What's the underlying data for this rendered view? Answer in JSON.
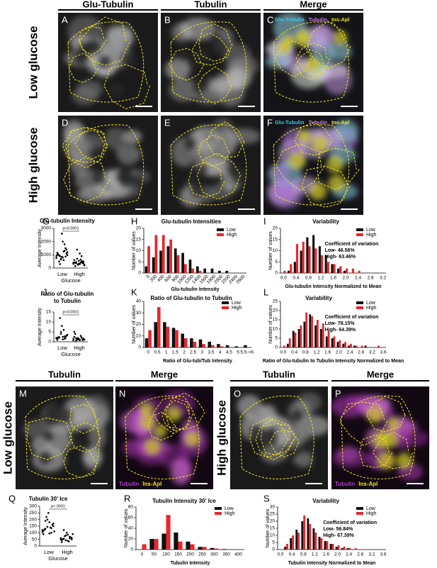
{
  "figure": {
    "headers_top": [
      "Glu-Tubulin",
      "Tubulin",
      "Merge"
    ],
    "row_labels": [
      "Low glucose",
      "High glucose"
    ],
    "panels": [
      "A",
      "B",
      "C",
      "D",
      "E",
      "F"
    ],
    "merge_legend": [
      {
        "text": "Glu-Tubulin",
        "color": "#3ec8e8"
      },
      {
        "text": "Tubulin",
        "color": "#c07ae0"
      },
      {
        "text": "Ins-Apl",
        "color": "#f2e21a"
      }
    ],
    "bottom_headers": [
      "Tubulin",
      "Merge",
      "Tubulin",
      "Merge"
    ],
    "bottom_row_labels": [
      "Low glucose",
      "High glucose"
    ],
    "bottom_panels": [
      "M",
      "N",
      "O",
      "P"
    ],
    "bottom_legend": [
      {
        "text": "Tubulin",
        "color": "#b23ad0"
      },
      {
        "text": "Ins-Apl",
        "color": "#f2e21a"
      }
    ]
  },
  "chart_data": [
    {
      "type": "dot",
      "letter": "G",
      "title": "Glu-tubulin Intensity",
      "ylabel": "Average Intensity",
      "xlabel": "Glucose",
      "categories": [
        "Low",
        "High"
      ],
      "values": [
        [
          900,
          1100,
          1300,
          800,
          700,
          950,
          1000,
          1200,
          1500,
          600,
          850,
          900,
          1050,
          750,
          1400,
          1800,
          2000,
          650,
          500,
          1150,
          980,
          870,
          1250,
          2600,
          300
        ],
        [
          400,
          350,
          500,
          300,
          250,
          450,
          600,
          200,
          380,
          420,
          550,
          700,
          150,
          320,
          480,
          900,
          1100,
          280,
          360,
          410,
          230,
          520,
          640,
          330,
          1400
        ]
      ],
      "ylim": [
        0,
        3000
      ],
      "yticks": [
        0,
        1000,
        2000,
        3000
      ],
      "annotation": "p<0.0001"
    },
    {
      "type": "bar",
      "letter": "H",
      "title": "Glu-tubulin Intensities",
      "ylabel": "Number of values",
      "xlabel": "Glu-tubulin Intensity",
      "categories": [
        "0",
        "200",
        "400",
        "600",
        "800",
        "1000",
        "1200",
        "1400",
        "1600",
        "1800",
        "2000",
        "2200",
        "2400",
        "2600"
      ],
      "series": [
        {
          "name": "Low",
          "color": "#111111",
          "values": [
            3,
            7,
            10,
            12,
            11,
            9,
            6,
            3,
            2,
            2,
            1,
            1,
            0,
            0
          ]
        },
        {
          "name": "High",
          "color": "#e8262b",
          "values": [
            12,
            17,
            17,
            15,
            8,
            4,
            2,
            1,
            0,
            0,
            0,
            0,
            0,
            0
          ]
        }
      ],
      "ylim": [
        0,
        20
      ],
      "yticks": [
        0,
        5,
        10,
        15,
        20
      ]
    },
    {
      "type": "bar",
      "letter": "I",
      "title": "Variability",
      "ylabel": "Number of values",
      "xlabel": "Glu-tubulin Intensity Normalized to Mean",
      "categories": [
        "0.0",
        null,
        "0.4",
        null,
        "0.8",
        null,
        "1.2",
        null,
        "1.6",
        null,
        "2.0",
        null,
        "2.4",
        null,
        "2.8",
        null,
        "3.2"
      ],
      "series": [
        {
          "name": "Low",
          "color": "#111111",
          "values": [
            0,
            1,
            5,
            10,
            16,
            17,
            12,
            8,
            4,
            2,
            1,
            0,
            0,
            0,
            0,
            0,
            0
          ]
        },
        {
          "name": "High",
          "color": "#e8262b",
          "values": [
            1,
            4,
            13,
            14,
            12,
            11,
            8,
            5,
            4,
            3,
            2,
            2,
            1,
            0,
            0,
            0,
            0
          ]
        }
      ],
      "ylim": [
        0,
        20
      ],
      "yticks": [
        0,
        5,
        10,
        15,
        20
      ],
      "notes": [
        "Coefficient of variation",
        "Low- 46.56%",
        "High- 63.46%"
      ]
    },
    {
      "type": "dot",
      "letter": "J",
      "title": [
        "Ratio of Glu-tubulin",
        "to Tubulin"
      ],
      "ylabel": "Average Intensity",
      "xlabel": "Glucose",
      "categories": [
        "Low",
        "High"
      ],
      "values": [
        [
          2,
          3,
          1.5,
          2.5,
          4,
          2,
          1,
          3.5,
          2,
          6,
          8,
          12,
          2.2,
          1.8,
          3,
          2.7,
          1.2,
          5,
          2.4,
          1.6
        ],
        [
          1.5,
          1,
          2,
          0.8,
          1.2,
          1.8,
          2.5,
          1.1,
          0.9,
          3,
          1.4,
          1.3,
          4,
          0.7,
          1.6,
          2.2,
          1,
          1.9,
          0.6,
          5
        ]
      ],
      "ylim": [
        0,
        15
      ],
      "yticks": [
        0,
        5,
        10,
        15
      ],
      "annotation": "p<0.0001"
    },
    {
      "type": "bar",
      "letter": "K",
      "title": "Ratio of Glu-tubulin to Tubulin",
      "ylabel": "Number of values",
      "xlabel": "Ratio of Glu-tub/Tub Intensity",
      "categories": [
        "0",
        "0.5",
        "1",
        "1.5",
        "2",
        "2.5",
        "3",
        "3.5",
        "4",
        "4.5",
        "5",
        "5.5->6"
      ],
      "series": [
        {
          "name": "Low",
          "color": "#111111",
          "values": [
            8,
            22,
            22,
            17,
            12,
            8,
            7,
            5,
            3,
            2,
            1,
            2
          ]
        },
        {
          "name": "High",
          "color": "#e8262b",
          "values": [
            15,
            35,
            18,
            15,
            8,
            5,
            3,
            2,
            1,
            0,
            0,
            0
          ]
        }
      ],
      "ylim": [
        0,
        40
      ],
      "yticks": [
        0,
        10,
        20,
        30,
        40
      ]
    },
    {
      "type": "bar",
      "letter": "L",
      "title": "Variability",
      "ylabel": "Number of values",
      "xlabel": "Ratio of Glu-tubulin to Tubulin Intensity Normalized to Mean",
      "categories": [
        "0.0",
        null,
        "0.4",
        null,
        "0.8",
        null,
        "1.2",
        null,
        "1.6",
        null,
        "2.0",
        null,
        "2.4",
        null,
        "2.8",
        null,
        "3.2",
        null,
        "3.6"
      ],
      "series": [
        {
          "name": "Low",
          "color": "#111111",
          "values": [
            0,
            2,
            9,
            10,
            14,
            18,
            12,
            10,
            6,
            5,
            3,
            2,
            1,
            1,
            0,
            1,
            0,
            0,
            0
          ]
        },
        {
          "name": "High",
          "color": "#e8262b",
          "values": [
            1,
            5,
            8,
            12,
            19,
            17,
            15,
            13,
            9,
            6,
            4,
            3,
            2,
            1,
            1,
            0,
            0,
            1,
            0
          ]
        }
      ],
      "ylim": [
        0,
        25
      ],
      "yticks": [
        0,
        5,
        10,
        15,
        20,
        25
      ],
      "notes": [
        "Coefficient of variation",
        "Low- 78.15%",
        "High- 64.39%"
      ]
    },
    {
      "type": "dot",
      "letter": "Q",
      "title": "Tubulin 30' Ice",
      "ylabel": "Average Intensity",
      "xlabel": "Glucose",
      "categories": [
        "Low",
        "High"
      ],
      "values": [
        [
          120,
          150,
          100,
          180,
          200,
          130,
          90,
          110,
          160,
          140,
          250,
          220,
          125,
          105,
          170,
          135,
          95,
          145,
          190,
          115
        ],
        [
          60,
          50,
          70,
          40,
          80,
          55,
          45,
          90,
          65,
          35,
          100,
          75,
          52,
          48,
          62,
          58,
          85,
          44,
          120,
          30
        ]
      ],
      "ylim": [
        0,
        300
      ],
      "yticks": [
        0,
        50,
        100,
        150,
        200,
        250,
        300
      ],
      "annotation": "p<.0001"
    },
    {
      "type": "bar",
      "letter": "R",
      "title": "Tubulin Intensity 30' Ice",
      "ylabel": "Number of values",
      "xlabel": "Tubulin Intensity",
      "categories": [
        "0",
        "50",
        "100",
        "150",
        "200",
        "250",
        "300",
        "350",
        "400"
      ],
      "series": [
        {
          "name": "Low",
          "color": "#111111",
          "values": [
            0,
            20,
            30,
            32,
            15,
            5,
            3,
            1,
            0
          ]
        },
        {
          "name": "High",
          "color": "#e8262b",
          "values": [
            10,
            20,
            65,
            15,
            10,
            5,
            2,
            0,
            0
          ]
        }
      ],
      "ylim": [
        0,
        80
      ],
      "yticks": [
        0,
        20,
        40,
        60,
        80
      ]
    },
    {
      "type": "bar",
      "letter": "S",
      "title": "Variability",
      "ylabel": "Number of values",
      "xlabel": "Tubulin Intensity Normalized to Mean",
      "categories": [
        "0.0",
        null,
        "0.4",
        null,
        "0.8",
        null,
        "1.2",
        null,
        "1.6",
        null,
        "2.0",
        null,
        "2.4",
        null,
        "2.8",
        null,
        "3.2",
        null,
        "3.6"
      ],
      "series": [
        {
          "name": "Low",
          "color": "#111111",
          "values": [
            0,
            2,
            8,
            14,
            20,
            22,
            15,
            9,
            6,
            4,
            2,
            1,
            1,
            0,
            0,
            0,
            0,
            0,
            0
          ]
        },
        {
          "name": "High",
          "color": "#e8262b",
          "values": [
            0,
            4,
            10,
            12,
            24,
            18,
            12,
            8,
            6,
            4,
            3,
            2,
            1,
            1,
            0,
            0,
            0,
            0,
            0
          ]
        }
      ],
      "ylim": [
        0,
        30
      ],
      "yticks": [
        0,
        5,
        10,
        15,
        20,
        25,
        30
      ],
      "notes": [
        "Coefficient of variation",
        "Low- 56.84%",
        "High- 67.39%"
      ]
    }
  ]
}
